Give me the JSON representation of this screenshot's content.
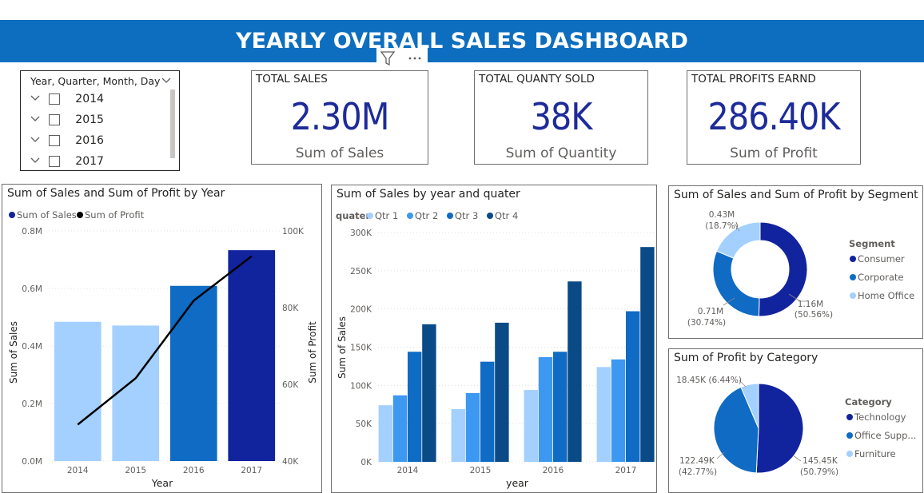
{
  "dashboard": {
    "title": "YEARLY OVERALL SALES DASHBOARD"
  },
  "slicer": {
    "header": "Year, Quarter, Month, Day",
    "items": [
      "2014",
      "2015",
      "2016",
      "2017"
    ]
  },
  "cards": [
    {
      "title": "TOTAL SALES",
      "value": "2.30M",
      "label": "Sum of Sales"
    },
    {
      "title": "TOTAL QUANTY SOLD",
      "value": "38K",
      "label": "Sum of Quantity"
    },
    {
      "title": "TOTAL PROFITS EARND",
      "value": "286.40K",
      "label": "Sum of Profit"
    }
  ],
  "colors": {
    "banner": "#0d6ebf",
    "light": "#a3d0ff",
    "mid": "#3d98f2",
    "dark": "#0f6bc4",
    "navy": "#12239e",
    "line": "#000000"
  },
  "chart_data": [
    {
      "type": "bar",
      "title": "Sum of Sales and Sum of Profit by Year",
      "xlabel": "Year",
      "ylabel": "Sum of Sales",
      "y2label": "Sum of Profit",
      "legend": [
        "Sum of Sales",
        "Sum of Profit"
      ],
      "legend_position": "top-left",
      "categories": [
        "2014",
        "2015",
        "2016",
        "2017"
      ],
      "series": [
        {
          "name": "Sum of Sales",
          "type": "bar",
          "values": [
            484000,
            471000,
            609000,
            733000
          ]
        },
        {
          "name": "Sum of Profit",
          "type": "line",
          "axis": "secondary",
          "values": [
            49500,
            61600,
            81800,
            93400
          ]
        }
      ],
      "ylim": [
        0,
        800000
      ],
      "y2lim": [
        40000,
        100000
      ],
      "yticks": [
        "0.0M",
        "0.2M",
        "0.4M",
        "0.6M",
        "0.8M"
      ],
      "y2ticks": [
        "40K",
        "60K",
        "80K",
        "100K"
      ]
    },
    {
      "type": "bar",
      "title": "Sum of Sales by year and quater",
      "xlabel": "year",
      "ylabel": "Sum of Sales",
      "legend_title": "quater",
      "legend_position": "top-left",
      "categories": [
        "2014",
        "2015",
        "2016",
        "2017"
      ],
      "series": [
        {
          "name": "Qtr 1",
          "values": [
            74000,
            69000,
            94000,
            124000
          ]
        },
        {
          "name": "Qtr 2",
          "values": [
            87000,
            90000,
            137000,
            134000
          ]
        },
        {
          "name": "Qtr 3",
          "values": [
            144000,
            131000,
            144000,
            197000
          ]
        },
        {
          "name": "Qtr 4",
          "values": [
            180000,
            182000,
            236000,
            281000
          ]
        }
      ],
      "ylim": [
        0,
        300000
      ],
      "yticks": [
        "0K",
        "50K",
        "100K",
        "150K",
        "200K",
        "250K",
        "300K"
      ]
    },
    {
      "type": "pie",
      "title": "Sum of Sales and Sum of Profit by Segment",
      "legend_title": "Segment",
      "legend_position": "right",
      "donut": true,
      "slices": [
        {
          "name": "Consumer",
          "value": 1.16,
          "label": "1.16M",
          "pct": "(50.56%)"
        },
        {
          "name": "Corporate",
          "value": 0.71,
          "label": "0.71M",
          "pct": "(30.74%)"
        },
        {
          "name": "Home Office",
          "value": 0.43,
          "label": "0.43M",
          "pct": "(18.7%)"
        }
      ]
    },
    {
      "type": "pie",
      "title": "Sum of Profit by Category",
      "legend_title": "Category",
      "legend_position": "right",
      "donut": false,
      "slices": [
        {
          "name": "Technology",
          "value": 145.45,
          "label": "145.45K",
          "pct": "(50.79%)"
        },
        {
          "name": "Office Supp...",
          "value": 122.49,
          "label": "122.49K",
          "pct": "(42.77%)"
        },
        {
          "name": "Furniture",
          "value": 18.45,
          "label": "18.45K (6.44%)",
          "pct": ""
        }
      ]
    }
  ]
}
